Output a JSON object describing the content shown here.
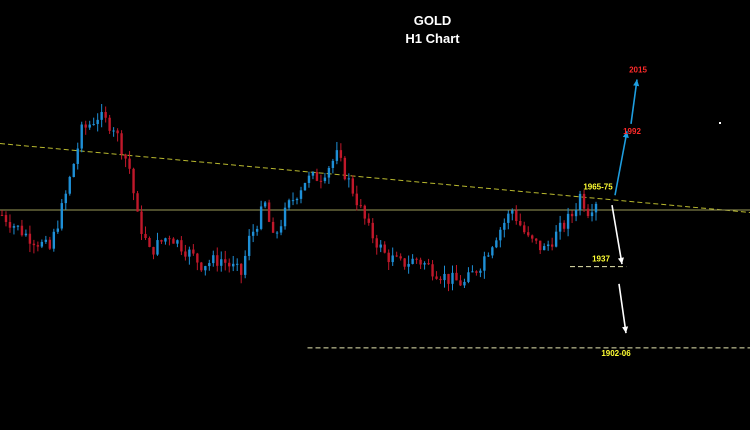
{
  "chart_data": {
    "type": "candlestick",
    "title": "GOLD",
    "subtitle": "H1 Chart",
    "xlabel": "",
    "ylabel": "",
    "grid": false,
    "ylim": [
      1895,
      2025
    ],
    "bull_color": "#1e8fd6",
    "bear_color": "#c0182a",
    "waypoints": [
      {
        "i": 0,
        "p": 1958
      },
      {
        "i": 6,
        "p": 1950
      },
      {
        "i": 12,
        "p": 1944
      },
      {
        "i": 16,
        "p": 1966
      },
      {
        "i": 20,
        "p": 1992
      },
      {
        "i": 24,
        "p": 1998
      },
      {
        "i": 28,
        "p": 1994
      },
      {
        "i": 32,
        "p": 1977
      },
      {
        "i": 34,
        "p": 1957
      },
      {
        "i": 37,
        "p": 1943
      },
      {
        "i": 42,
        "p": 1950
      },
      {
        "i": 46,
        "p": 1944
      },
      {
        "i": 50,
        "p": 1938
      },
      {
        "i": 55,
        "p": 1940
      },
      {
        "i": 60,
        "p": 1934
      },
      {
        "i": 62,
        "p": 1948
      },
      {
        "i": 66,
        "p": 1962
      },
      {
        "i": 68,
        "p": 1948
      },
      {
        "i": 72,
        "p": 1962
      },
      {
        "i": 76,
        "p": 1972
      },
      {
        "i": 80,
        "p": 1974
      },
      {
        "i": 84,
        "p": 1982
      },
      {
        "i": 88,
        "p": 1968
      },
      {
        "i": 92,
        "p": 1952
      },
      {
        "i": 96,
        "p": 1942
      },
      {
        "i": 100,
        "p": 1938
      },
      {
        "i": 104,
        "p": 1940
      },
      {
        "i": 108,
        "p": 1936
      },
      {
        "i": 112,
        "p": 1932
      },
      {
        "i": 116,
        "p": 1930
      },
      {
        "i": 120,
        "p": 1938
      },
      {
        "i": 124,
        "p": 1950
      },
      {
        "i": 128,
        "p": 1960
      },
      {
        "i": 132,
        "p": 1948
      },
      {
        "i": 136,
        "p": 1944
      },
      {
        "i": 140,
        "p": 1952
      },
      {
        "i": 143,
        "p": 1958
      },
      {
        "i": 145,
        "p": 1966
      },
      {
        "i": 147,
        "p": 1960
      },
      {
        "i": 149,
        "p": 1964
      }
    ],
    "trendlines": [
      {
        "style": "dashed",
        "color": "#b8b82e",
        "from": [
          0,
          1987
        ],
        "to": [
          1,
          1959
        ]
      },
      {
        "style": "solid",
        "color": "#9a9a58",
        "price": 1960,
        "x_start": 0,
        "x_end": 1
      },
      {
        "style": "dashed",
        "color": "#e6e6b0",
        "price": 1937,
        "x_start": 0.76,
        "x_end": 0.835
      },
      {
        "style": "dashed",
        "color": "#e6e6b0",
        "price": 1904,
        "x_start": 0.41,
        "x_end": 1
      }
    ],
    "annotations": [
      {
        "text": "2015",
        "color": "#ff2a2a",
        "price": 2015
      },
      {
        "text": "1992",
        "color": "#ff2a2a",
        "price": 1992
      },
      {
        "text": "1965-75",
        "color": "#ffff33",
        "price": 1965
      },
      {
        "text": "1937",
        "color": "#ffff33",
        "price": 1937
      },
      {
        "text": "1902-06",
        "color": "#ffff33",
        "price": 1904
      }
    ],
    "projection_arrows": [
      {
        "direction": "up",
        "color": "#1e9ee0",
        "from_price": 1966,
        "to_price": 1992
      },
      {
        "direction": "up",
        "color": "#1e9ee0",
        "from_price": 1995,
        "to_price": 2013
      },
      {
        "direction": "down",
        "color": "#ffffff",
        "from_price": 1962,
        "to_price": 1938
      },
      {
        "direction": "down",
        "color": "#ffffff",
        "from_price": 1930,
        "to_price": 1910
      }
    ]
  }
}
